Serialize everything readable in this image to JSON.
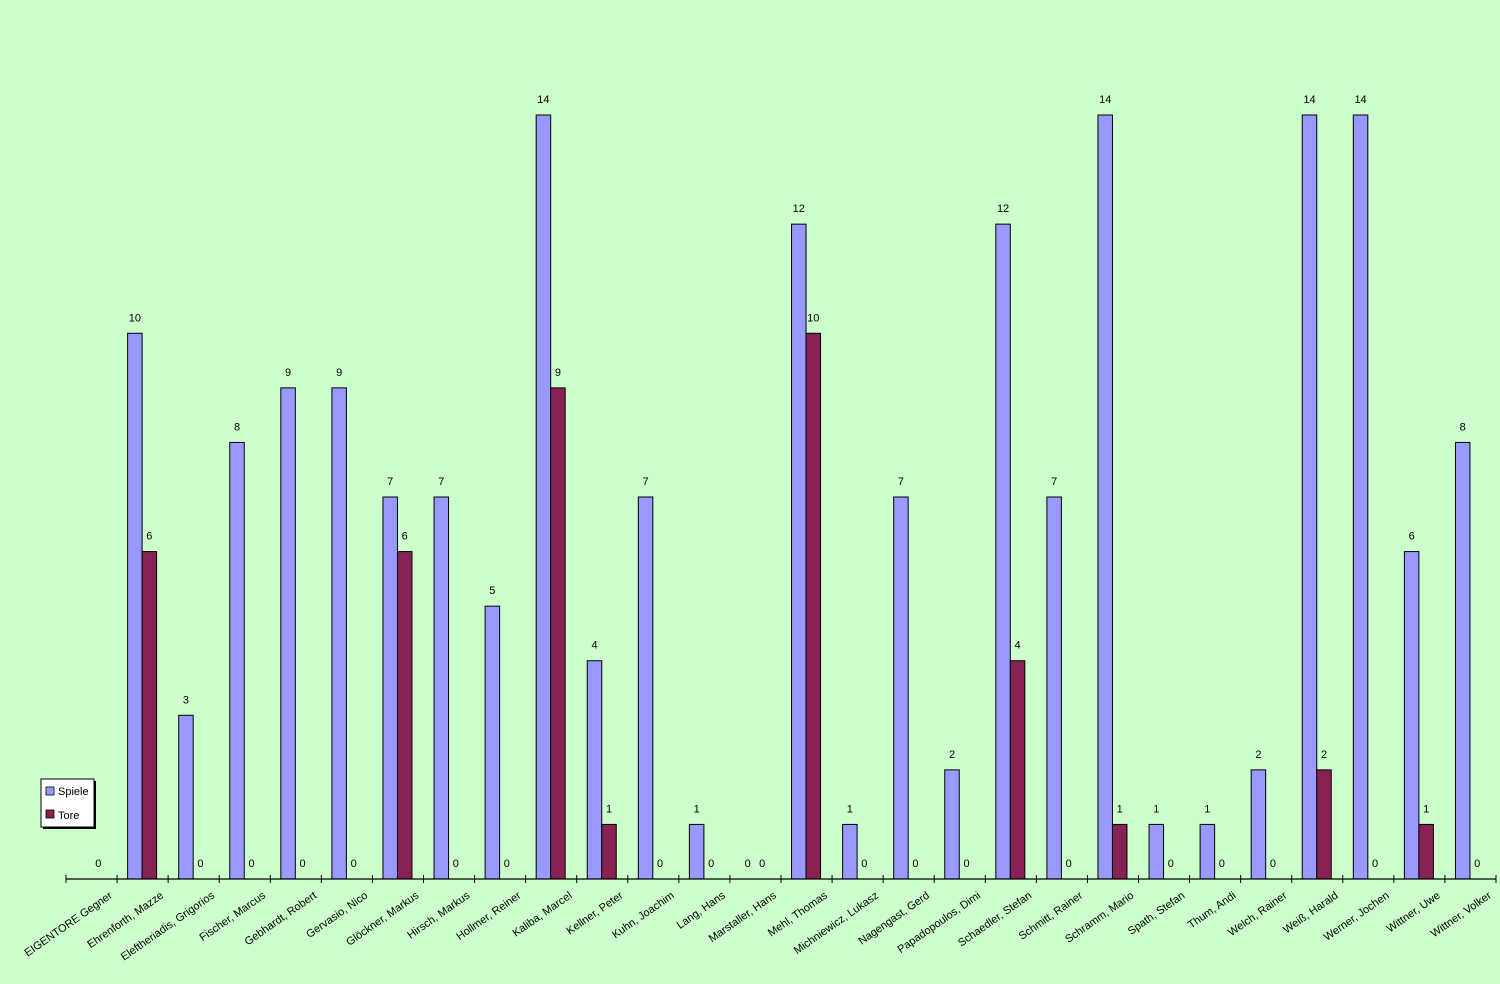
{
  "chart_data": {
    "type": "bar",
    "categories": [
      "EIGENTORE Gegner",
      "Ehrenforth, Mazze",
      "Eleftheriadis, Grigorios",
      "Fischer, Marcus",
      "Gebhardt, Robert",
      "Gervasio, Nico",
      "Glöckner, Markus",
      "Hirsch, Markus",
      "Hollmer, Reiner",
      "Kaliba, Marcel",
      "Kellner, Peter",
      "Kuhn, Joachim",
      "Lang, Hans",
      "Marstaller, Hans",
      "Mehl, Thomas",
      "Michniewicz, Lukasz",
      "Nagengast, Gerd",
      "Papadopoulos, Dimi",
      "Schaedler, Stefan",
      "Schmitt, Rainer",
      "Schramm, Mario",
      "Spath, Stefan",
      "Thum, Andi",
      "Welch, Rainer",
      "Weiß, Harald",
      "Werner, Jochen",
      "Wittner, Uwe",
      "Wittner, Volker"
    ],
    "series": [
      {
        "name": "Spiele",
        "color": "#9999ff",
        "values": [
          null,
          10,
          3,
          8,
          9,
          9,
          7,
          7,
          5,
          14,
          4,
          7,
          1,
          0,
          12,
          1,
          7,
          2,
          12,
          7,
          14,
          1,
          1,
          2,
          14,
          14,
          6,
          8
        ]
      },
      {
        "name": "Tore",
        "color": "#882255",
        "values": [
          0,
          6,
          0,
          0,
          0,
          0,
          6,
          0,
          0,
          9,
          1,
          0,
          0,
          0,
          10,
          0,
          0,
          0,
          4,
          0,
          1,
          0,
          0,
          0,
          2,
          0,
          1,
          0
        ]
      }
    ],
    "ylim": [
      0,
      14
    ],
    "grid": false,
    "legend_position": "bottom-left"
  }
}
